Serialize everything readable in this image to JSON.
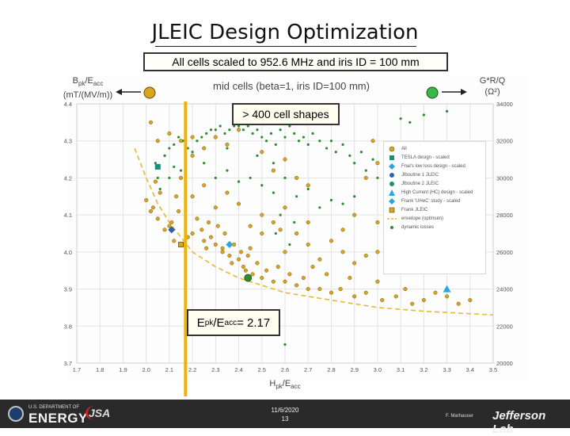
{
  "slide": {
    "title": "JLEIC Design Optimization",
    "scaled_note": "All cells scaled to 952.6 MHz and iris ID = 100 mm",
    "cells_note": "> 400 cell shapes",
    "epk_note": {
      "main": "E",
      "sub1": "pk",
      "mid": "/E",
      "sub2": "acc",
      "tail": " = 2.17"
    }
  },
  "footer": {
    "doe_small": "U.S. DEPARTMENT OF",
    "doe_big": "ENERGY",
    "jsa": "JSA",
    "date": "11/6/2020",
    "page": "13",
    "author": "F. Marhauser",
    "lab": "Jefferson Lab"
  },
  "colors": {
    "all": "#d9a521",
    "all_edge": "#7a5a10",
    "dynamic": "#2e8b2e",
    "envelope": "#e8b830",
    "cyan": "#29a8e0",
    "teal": "#1f8c78",
    "epk_line": "#f0b400",
    "arrow": "#222222"
  },
  "chart_data": {
    "type": "scatter",
    "title": "mid cells (beta=1, iris ID=100 mm)",
    "xlabel": "Hpk/Eacc",
    "ylabel_left": "Bpk/Eacc (mT/(MV/m))",
    "ylabel_right": "G*R/Q (Ω²)",
    "xlim": [
      1.7,
      3.5
    ],
    "ylim": [
      3.7,
      4.4
    ],
    "y2lim": [
      20000,
      34000
    ],
    "grid": true,
    "legend_position": "right",
    "x_ticks": [
      "1.7",
      "1.8",
      "1.9",
      "2.0",
      "2.1",
      "2.2",
      "2.3",
      "2.4",
      "2.5",
      "2.6",
      "2.7",
      "2.8",
      "2.9",
      "3.0",
      "3.1",
      "3.2",
      "3.3",
      "3.4",
      "3.5"
    ],
    "y_ticks": [
      "3.7",
      "3.8",
      "3.9",
      "4.0",
      "4.1",
      "4.2",
      "4.3",
      "4.4"
    ],
    "y2_ticks": [
      "20000",
      "22000",
      "24000",
      "26000",
      "28000",
      "30000",
      "32000",
      "34000"
    ],
    "legend": [
      {
        "label": "All",
        "marker": "circle-orange"
      },
      {
        "label": "TESLA design - scaled",
        "marker": "square-teal"
      },
      {
        "label": "Fnal's low loss design - scaled",
        "marker": "diamond-cyan"
      },
      {
        "label": "Jlboutine 1 JLEIC",
        "marker": "circle-blue"
      },
      {
        "label": "Jlboutine 2 JLEIC",
        "marker": "circle-teal"
      },
      {
        "label": "High Current (HC) design - scaled",
        "marker": "triangle-cyan"
      },
      {
        "label": "Frank 'UHeC' study - scaled",
        "marker": "diamond-cyan"
      },
      {
        "label": "Frank JLEIC",
        "marker": "square-orange"
      },
      {
        "label": "envelope (optimum)",
        "marker": "dashed-line"
      },
      {
        "label": "dynamic losses",
        "marker": "dot-green"
      }
    ],
    "series": [
      {
        "name": "All",
        "points": [
          [
            2.0,
            4.14
          ],
          [
            2.02,
            4.11
          ],
          [
            2.03,
            4.12
          ],
          [
            2.04,
            4.19
          ],
          [
            2.06,
            4.16
          ],
          [
            2.05,
            4.09
          ],
          [
            2.08,
            4.06
          ],
          [
            2.1,
            4.07
          ],
          [
            2.12,
            4.03
          ],
          [
            2.11,
            4.08
          ],
          [
            2.13,
            4.15
          ],
          [
            2.14,
            4.11
          ],
          [
            2.16,
            4.02
          ],
          [
            2.18,
            4.04
          ],
          [
            2.2,
            4.05
          ],
          [
            2.22,
            4.09
          ],
          [
            2.24,
            4.06
          ],
          [
            2.25,
            4.03
          ],
          [
            2.26,
            4.01
          ],
          [
            2.27,
            4.08
          ],
          [
            2.28,
            4.04
          ],
          [
            2.3,
            4.02
          ],
          [
            2.31,
            4.07
          ],
          [
            2.33,
            4.01
          ],
          [
            2.34,
            4.05
          ],
          [
            2.36,
            3.99
          ],
          [
            2.38,
            4.02
          ],
          [
            2.4,
            3.98
          ],
          [
            2.42,
            3.96
          ],
          [
            2.43,
            3.95
          ],
          [
            2.44,
            3.99
          ],
          [
            2.45,
            4.01
          ],
          [
            2.46,
            3.94
          ],
          [
            2.48,
            3.97
          ],
          [
            2.5,
            3.93
          ],
          [
            2.52,
            3.95
          ],
          [
            2.55,
            3.92
          ],
          [
            2.57,
            3.96
          ],
          [
            2.6,
            3.92
          ],
          [
            2.62,
            3.94
          ],
          [
            2.65,
            3.91
          ],
          [
            2.68,
            3.93
          ],
          [
            2.7,
            3.9
          ],
          [
            2.72,
            3.96
          ],
          [
            2.75,
            3.9
          ],
          [
            2.78,
            3.94
          ],
          [
            2.8,
            3.89
          ],
          [
            2.84,
            3.9
          ],
          [
            2.88,
            3.93
          ],
          [
            2.9,
            3.88
          ],
          [
            2.95,
            3.89
          ],
          [
            3.0,
            3.92
          ],
          [
            3.02,
            3.87
          ],
          [
            3.08,
            3.88
          ],
          [
            3.12,
            3.9
          ],
          [
            3.15,
            3.86
          ],
          [
            3.2,
            3.87
          ],
          [
            3.25,
            3.89
          ],
          [
            3.3,
            3.88
          ],
          [
            3.35,
            3.86
          ],
          [
            3.4,
            3.87
          ],
          [
            2.6,
            4.0
          ],
          [
            2.65,
            4.05
          ],
          [
            2.7,
            4.02
          ],
          [
            2.75,
            3.98
          ],
          [
            2.8,
            4.03
          ],
          [
            2.85,
            4.0
          ],
          [
            2.9,
            3.97
          ],
          [
            2.95,
            3.99
          ],
          [
            3.0,
            4.0
          ],
          [
            3.05,
            3.98
          ],
          [
            2.5,
            4.1
          ],
          [
            2.55,
            4.08
          ],
          [
            2.6,
            4.12
          ],
          [
            2.4,
            4.13
          ],
          [
            2.45,
            4.07
          ],
          [
            2.35,
            4.16
          ],
          [
            2.3,
            4.12
          ],
          [
            2.2,
            4.15
          ],
          [
            2.15,
            4.2
          ],
          [
            2.25,
            4.18
          ],
          [
            2.5,
            4.05
          ],
          [
            2.58,
            4.06
          ],
          [
            2.7,
            4.08
          ],
          [
            2.33,
            4.0
          ],
          [
            2.37,
            3.97
          ],
          [
            2.41,
            4.0
          ],
          [
            2.02,
            4.35
          ],
          [
            2.05,
            4.3
          ],
          [
            2.1,
            4.32
          ],
          [
            2.15,
            4.3
          ],
          [
            2.2,
            4.31
          ],
          [
            2.3,
            4.31
          ],
          [
            2.25,
            4.28
          ],
          [
            2.2,
            4.26
          ],
          [
            2.35,
            4.29
          ],
          [
            2.4,
            4.33
          ],
          [
            2.5,
            4.27
          ],
          [
            2.6,
            4.25
          ],
          [
            2.55,
            4.22
          ],
          [
            2.65,
            4.2
          ],
          [
            2.7,
            4.18
          ],
          [
            3.0,
            4.24
          ],
          [
            3.05,
            4.22
          ],
          [
            3.1,
            4.13
          ],
          [
            3.15,
            4.15
          ],
          [
            3.0,
            4.08
          ],
          [
            2.9,
            4.1
          ],
          [
            2.85,
            4.06
          ],
          [
            2.95,
            4.2
          ],
          [
            2.98,
            4.3
          ]
        ]
      },
      {
        "name": "dynamic losses",
        "points": [
          [
            2.04,
            4.24
          ],
          [
            2.05,
            4.2
          ],
          [
            2.06,
            4.17
          ],
          [
            2.08,
            4.26
          ],
          [
            2.1,
            4.28
          ],
          [
            2.12,
            4.29
          ],
          [
            2.14,
            4.31
          ],
          [
            2.16,
            4.3
          ],
          [
            2.18,
            4.28
          ],
          [
            2.2,
            4.27
          ],
          [
            2.22,
            4.3
          ],
          [
            2.24,
            4.31
          ],
          [
            2.26,
            4.32
          ],
          [
            2.28,
            4.33
          ],
          [
            2.3,
            4.33
          ],
          [
            2.32,
            4.34
          ],
          [
            2.34,
            4.32
          ],
          [
            2.36,
            4.33
          ],
          [
            2.38,
            4.34
          ],
          [
            2.4,
            4.34
          ],
          [
            2.42,
            4.33
          ],
          [
            2.44,
            4.34
          ],
          [
            2.46,
            4.32
          ],
          [
            2.48,
            4.33
          ],
          [
            2.5,
            4.31
          ],
          [
            2.52,
            4.3
          ],
          [
            2.54,
            4.32
          ],
          [
            2.56,
            4.29
          ],
          [
            2.58,
            4.33
          ],
          [
            2.6,
            4.31
          ],
          [
            2.62,
            4.34
          ],
          [
            2.64,
            4.32
          ],
          [
            2.66,
            4.3
          ],
          [
            2.68,
            4.31
          ],
          [
            2.7,
            4.29
          ],
          [
            2.72,
            4.32
          ],
          [
            2.75,
            4.3
          ],
          [
            2.78,
            4.28
          ],
          [
            2.8,
            4.3
          ],
          [
            2.82,
            4.27
          ],
          [
            2.85,
            4.29
          ],
          [
            2.88,
            4.26
          ],
          [
            2.9,
            4.24
          ],
          [
            2.93,
            4.27
          ],
          [
            2.95,
            4.22
          ],
          [
            2.98,
            4.25
          ],
          [
            3.0,
            4.2
          ],
          [
            3.05,
            4.22
          ],
          [
            3.1,
            4.36
          ],
          [
            3.2,
            4.37
          ],
          [
            3.3,
            4.38
          ],
          [
            3.14,
            4.35
          ],
          [
            2.3,
            4.2
          ],
          [
            2.35,
            4.22
          ],
          [
            2.4,
            4.19
          ],
          [
            2.45,
            4.2
          ],
          [
            2.5,
            4.18
          ],
          [
            2.55,
            4.16
          ],
          [
            2.6,
            4.2
          ],
          [
            2.65,
            4.15
          ],
          [
            2.7,
            4.17
          ],
          [
            2.75,
            4.12
          ],
          [
            2.8,
            4.14
          ],
          [
            2.85,
            4.13
          ],
          [
            2.9,
            4.15
          ],
          [
            2.58,
            4.1
          ],
          [
            2.64,
            4.08
          ],
          [
            2.56,
            4.05
          ],
          [
            2.62,
            4.02
          ],
          [
            2.6,
            3.75
          ],
          [
            2.55,
            4.24
          ],
          [
            2.48,
            4.26
          ],
          [
            2.35,
            4.28
          ],
          [
            2.25,
            4.24
          ],
          [
            2.15,
            4.22
          ],
          [
            2.1,
            4.2
          ],
          [
            2.12,
            4.23
          ]
        ]
      },
      {
        "name": "envelope (optimum)",
        "points": [
          [
            1.95,
            4.28
          ],
          [
            2.0,
            4.2
          ],
          [
            2.05,
            4.13
          ],
          [
            2.1,
            4.08
          ],
          [
            2.2,
            4.0
          ],
          [
            2.3,
            3.96
          ],
          [
            2.4,
            3.93
          ],
          [
            2.5,
            3.91
          ],
          [
            2.6,
            3.89
          ],
          [
            2.8,
            3.87
          ],
          [
            3.0,
            3.85
          ],
          [
            3.2,
            3.84
          ],
          [
            3.5,
            3.83
          ]
        ]
      }
    ],
    "special_points": [
      {
        "name": "TESLA design - scaled",
        "marker": "square-teal",
        "x": 2.05,
        "y": 4.23
      },
      {
        "name": "Jlboutine 1 JLEIC",
        "marker": "diamond-blue",
        "x": 2.11,
        "y": 4.06
      },
      {
        "name": "Fnal's low loss design - scaled",
        "marker": "diamond-cyan",
        "x": 2.36,
        "y": 4.02
      },
      {
        "name": "Frank JLEIC",
        "marker": "square-orange",
        "x": 2.15,
        "y": 4.02
      },
      {
        "name": "Jlboutine 2 JLEIC",
        "marker": "circle-green",
        "x": 2.44,
        "y": 3.93
      },
      {
        "name": "High Current (HC) design - scaled",
        "marker": "triangle-cyan",
        "x": 3.3,
        "y": 3.9
      },
      {
        "name": "G*R/Q reference",
        "marker": "circle-green-big",
        "x": 2.45,
        "y": 3.94
      }
    ],
    "epk_line_x": 2.17,
    "arrow_left_marker": "orange-circle",
    "arrow_right_marker": "green-circle"
  }
}
